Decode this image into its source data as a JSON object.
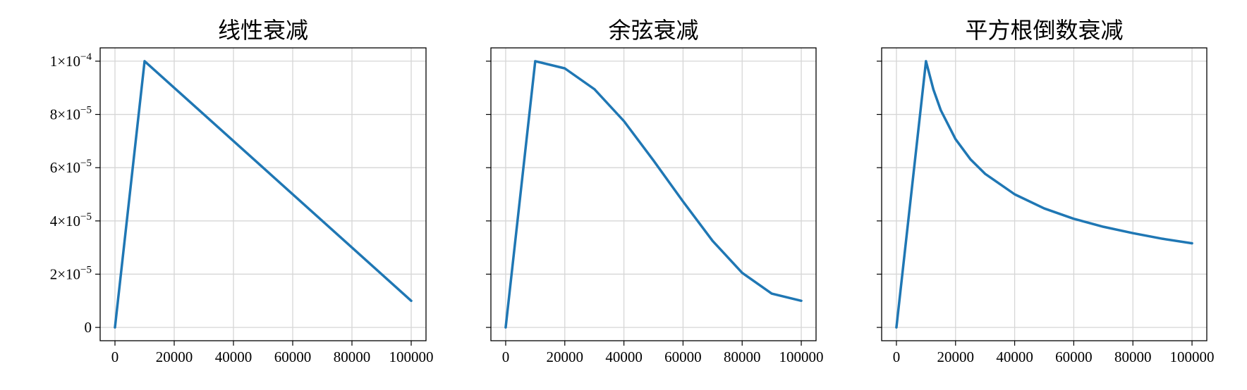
{
  "colors": {
    "series": "#1f77b4",
    "grid": "#d6d6d6",
    "axis": "#000000"
  },
  "chart_data": [
    {
      "type": "line",
      "title": "线性衰减",
      "xlim": [
        -5000,
        105000
      ],
      "ylim": [
        -5e-06,
        0.000105
      ],
      "grid": true,
      "x_ticks": [
        0,
        20000,
        40000,
        60000,
        80000,
        100000
      ],
      "x_tick_labels": [
        "0",
        "20000",
        "40000",
        "60000",
        "80000",
        "100000"
      ],
      "y_ticks": [
        0,
        2e-05,
        4e-05,
        6e-05,
        8e-05,
        0.0001
      ],
      "y_tick_labels": [
        {
          "base": "0",
          "exp": ""
        },
        {
          "base": "2×10",
          "exp": "−5"
        },
        {
          "base": "4×10",
          "exp": "−5"
        },
        {
          "base": "6×10",
          "exp": "−5"
        },
        {
          "base": "8×10",
          "exp": "−5"
        },
        {
          "base": "1×10",
          "exp": "−4"
        }
      ],
      "series": [
        {
          "x": [
            0,
            10000,
            100000
          ],
          "y": [
            0,
            0.0001,
            1e-05
          ]
        }
      ]
    },
    {
      "type": "line",
      "title": "余弦衰减",
      "xlim": [
        -5000,
        105000
      ],
      "ylim": [
        -5e-06,
        0.000105
      ],
      "grid": true,
      "x_ticks": [
        0,
        20000,
        40000,
        60000,
        80000,
        100000
      ],
      "x_tick_labels": [
        "0",
        "20000",
        "40000",
        "60000",
        "80000",
        "100000"
      ],
      "y_ticks": [
        0,
        2e-05,
        4e-05,
        6e-05,
        8e-05,
        0.0001
      ],
      "y_tick_labels": [],
      "series": [
        {
          "x": [
            0,
            10000,
            20000,
            30000,
            40000,
            50000,
            55000,
            60000,
            70000,
            80000,
            90000,
            100000
          ],
          "y": [
            0,
            0.0001,
            9.73e-05,
            8.95e-05,
            7.75e-05,
            6.27e-05,
            5.5e-05,
            4.73e-05,
            3.25e-05,
            2.05e-05,
            1.27e-05,
            1e-05
          ]
        }
      ]
    },
    {
      "type": "line",
      "title": "平方根倒数衰减",
      "xlim": [
        -5000,
        105000
      ],
      "ylim": [
        -5e-06,
        0.000105
      ],
      "grid": true,
      "x_ticks": [
        0,
        20000,
        40000,
        60000,
        80000,
        100000
      ],
      "x_tick_labels": [
        "0",
        "20000",
        "40000",
        "60000",
        "80000",
        "100000"
      ],
      "y_ticks": [
        0,
        2e-05,
        4e-05,
        6e-05,
        8e-05,
        0.0001
      ],
      "y_tick_labels": [],
      "series": [
        {
          "x": [
            0,
            10000,
            12500,
            15000,
            20000,
            25000,
            30000,
            40000,
            50000,
            60000,
            70000,
            80000,
            90000,
            100000
          ],
          "y": [
            0,
            0.0001,
            8.94e-05,
            8.16e-05,
            7.07e-05,
            6.32e-05,
            5.77e-05,
            5e-05,
            4.47e-05,
            4.08e-05,
            3.78e-05,
            3.54e-05,
            3.33e-05,
            3.16e-05
          ]
        }
      ]
    }
  ]
}
